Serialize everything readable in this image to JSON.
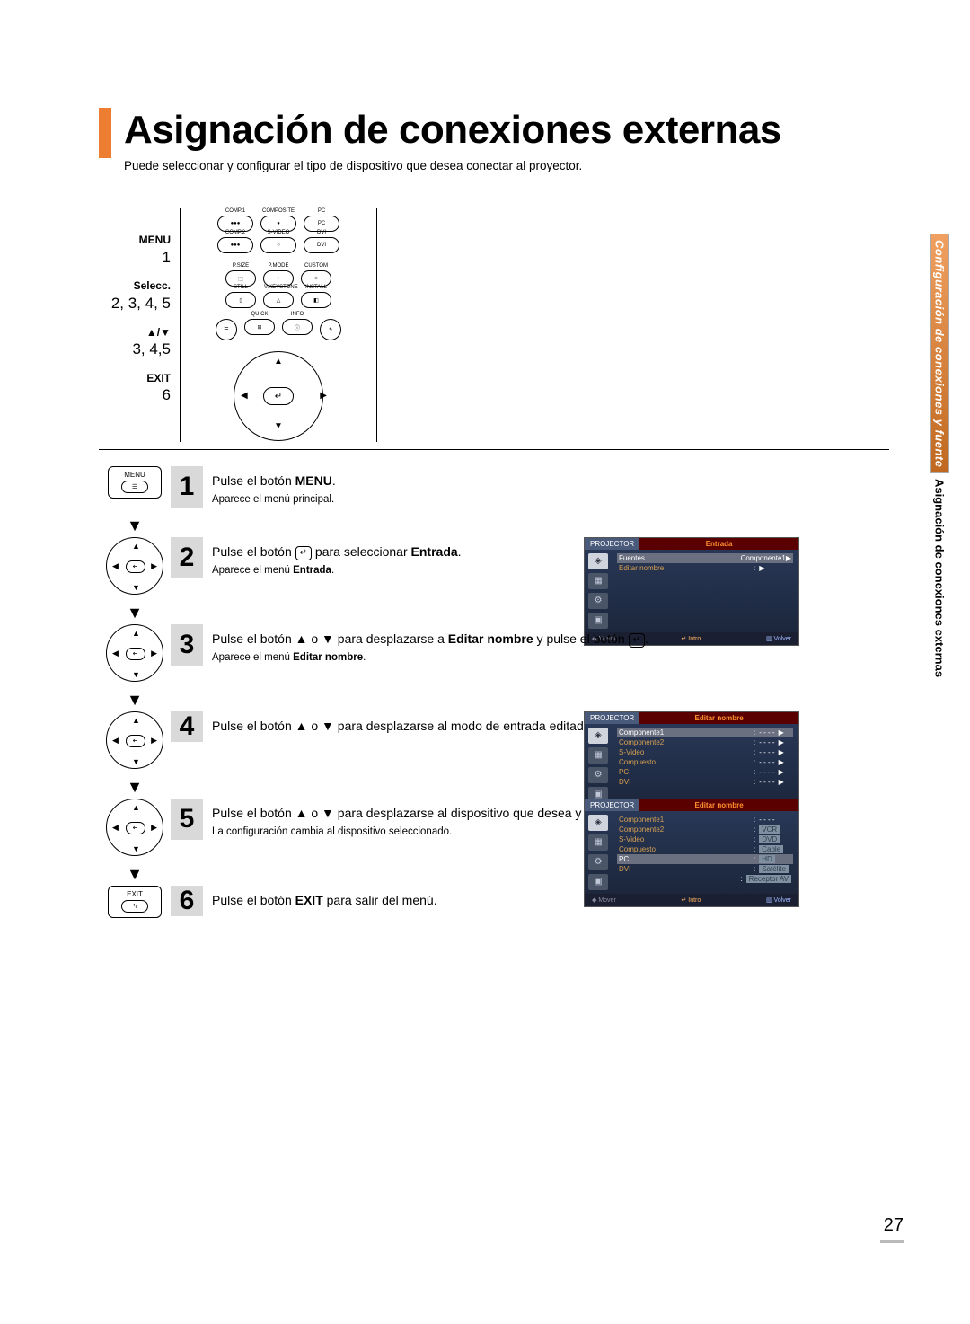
{
  "page": {
    "main_title": "Asignación de conexiones externas",
    "subtitle": "Puede seleccionar y configurar el tipo de dispositivo que desea conectar al proyector.",
    "page_number": "27"
  },
  "side_tab": {
    "top": "Configuración de conexiones y fuente",
    "bottom": "Asignación de conexiones externas"
  },
  "remote": {
    "row1": [
      "COMP.1",
      "COMPOSITE",
      "PC"
    ],
    "row2": [
      "COMP.2",
      "S-VIDEO",
      "DVI"
    ],
    "row3": [
      "P.SIZE",
      "P.MODE",
      "CUSTOM"
    ],
    "row4": [
      "STILL",
      "V.KEYSTONE",
      "INSTALL"
    ],
    "row5": [
      "QUICK",
      "INFO"
    ],
    "labels": {
      "menu": "MENU",
      "menu_n": "1",
      "selecc": "Selecc.",
      "selecc_n": "2, 3, 4, 5",
      "updown": "▲/▼",
      "updown_n": "3, 4,5",
      "exit": "EXIT",
      "exit_n": "6"
    }
  },
  "steps": [
    {
      "n": "1",
      "icon_type": "menu",
      "icon_label": "MENU",
      "text_pre": "Pulse el botón ",
      "text_bold": "MENU",
      "text_post": ".",
      "sub": "Aparece el menú principal."
    },
    {
      "n": "2",
      "icon_type": "dpad",
      "text_pre": "Pulse el botón ",
      "enter": true,
      "text_post": " para seleccionar ",
      "text_bold2": "Entrada",
      "text_end": ".",
      "sub_pre": "Aparece el menú ",
      "sub_bold": "Entrada",
      "sub_post": "."
    },
    {
      "n": "3",
      "icon_type": "dpad",
      "text_full1": "Pulse el botón ▲ o ▼ para desplazarse a ",
      "bold1": "Editar nombre",
      "text_full2": " y pulse el botón ",
      "enter": true,
      "text_end": ".",
      "sub_pre": "Aparece el menú ",
      "sub_bold": "Editar nombre",
      "sub_post": "."
    },
    {
      "n": "4",
      "icon_type": "dpad",
      "text_full1": "Pulse el botón ▲ o ▼ para desplazarse al modo de entrada editado y pulse el botón ",
      "enter": true,
      "text_end": "."
    },
    {
      "n": "5",
      "icon_type": "dpad",
      "text_full1": "Pulse el botón ▲ o ▼ para desplazarse al dispositivo que desea y pulse el botón ",
      "enter": true,
      "text_end": ".",
      "sub": "La configuración cambia al dispositivo seleccionado."
    },
    {
      "n": "6",
      "icon_type": "exit",
      "icon_label": "EXIT",
      "text_pre": "Pulse el botón ",
      "text_bold": "EXIT",
      "text_post": " para salir del menú."
    }
  ],
  "osd": {
    "proj": "PROJECTOR",
    "menu1": {
      "title": "Entrada",
      "items": [
        {
          "label": "Fuentes",
          "value": "Componente1▶",
          "sel": true
        },
        {
          "label": "Editar nombre",
          "value": "▶"
        }
      ]
    },
    "menu2": {
      "title": "Editar nombre",
      "items": [
        {
          "label": "Componente1",
          "value": "- - - -",
          "arr": "▶",
          "sel": true
        },
        {
          "label": "Componente2",
          "value": "- - - -",
          "arr": "▶"
        },
        {
          "label": "S-Video",
          "value": "- - - -",
          "arr": "▶"
        },
        {
          "label": "Compuesto",
          "value": "- - - -",
          "arr": "▶"
        },
        {
          "label": "PC",
          "value": "- - - -",
          "arr": "▶"
        },
        {
          "label": "DVI",
          "value": "- - - -",
          "arr": "▶"
        }
      ]
    },
    "menu3": {
      "title": "Editar nombre",
      "items": [
        {
          "label": "Componente1",
          "value": "- - - -"
        },
        {
          "label": "Componente2",
          "value": "VCR",
          "boxed": true
        },
        {
          "label": "S-Video",
          "value": "DVD",
          "boxed": true
        },
        {
          "label": "Compuesto",
          "value": "Cable",
          "boxed": true
        },
        {
          "label": "PC",
          "value": "HD",
          "boxed": true,
          "sel": true
        },
        {
          "label": "DVI",
          "value": "Satélite",
          "boxed": true
        },
        {
          "label": "",
          "value": "Receptor AV",
          "boxed": true
        }
      ]
    },
    "footer": {
      "mover": "Mover",
      "intro": "Intro",
      "volver": "Volver"
    }
  },
  "glyph": {
    "enter": "↵",
    "up": "▲",
    "down": "▼",
    "left": "◀",
    "right": "▶",
    "sep_arrow": "▼"
  }
}
